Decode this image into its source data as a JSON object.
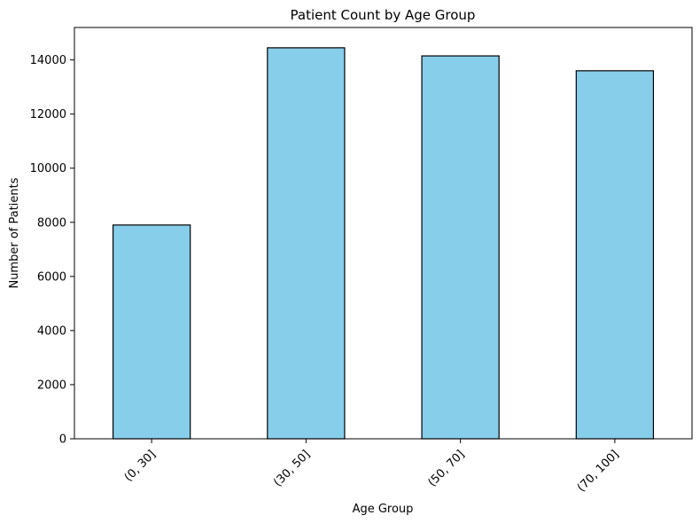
{
  "chart_data": {
    "type": "bar",
    "title": "Patient Count by Age Group",
    "xlabel": "Age Group",
    "ylabel": "Number of Patients",
    "categories": [
      "(0, 30]",
      "(30, 50]",
      "(50, 70]",
      "(70, 100]"
    ],
    "values": [
      7900,
      14450,
      14150,
      13600
    ],
    "ylim": [
      0,
      15200
    ],
    "yticks": [
      0,
      2000,
      4000,
      6000,
      8000,
      10000,
      12000,
      14000
    ],
    "grid": false,
    "legend": "none",
    "colors": {
      "bar_fill": "#87ceeb",
      "bar_edge": "#000000",
      "axis": "#000000"
    }
  }
}
